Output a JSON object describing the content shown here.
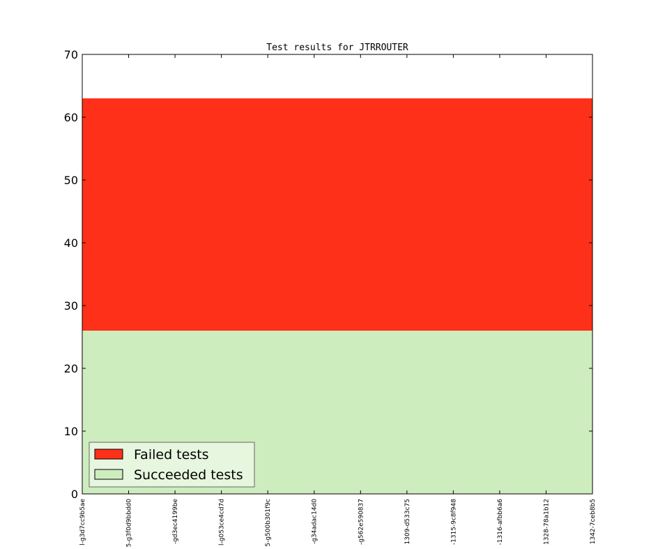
{
  "chart_data": {
    "type": "stacked_area",
    "title": "Test results for JTRROUTER",
    "categories": [
      "l-g3d7cc9b5ae",
      "5-g3f0d9bbdd0",
      "-gd3ec4199be",
      "l-g053ce4cd7d",
      "5-g500b301f9c",
      "-g34adac14d0",
      "-g562e590837",
      "1309-d533c75",
      "-1315-9c8f948",
      "-1316-afbb6a6",
      "1328-78a1b12",
      "1342-7ceb8b5"
    ],
    "series": [
      {
        "name": "Succeeded tests",
        "color": "#ceedbe",
        "values": [
          26,
          26,
          26,
          26,
          26,
          26,
          26,
          26,
          26,
          26,
          26,
          26
        ]
      },
      {
        "name": "Failed tests",
        "color": "#ff3019",
        "values": [
          37,
          37,
          37,
          37,
          37,
          37,
          37,
          37,
          37,
          37,
          37,
          37
        ]
      }
    ],
    "ylim": [
      0,
      70
    ],
    "yticks": [
      0,
      10,
      20,
      30,
      40,
      50,
      60,
      70
    ],
    "legend": "lower left"
  }
}
